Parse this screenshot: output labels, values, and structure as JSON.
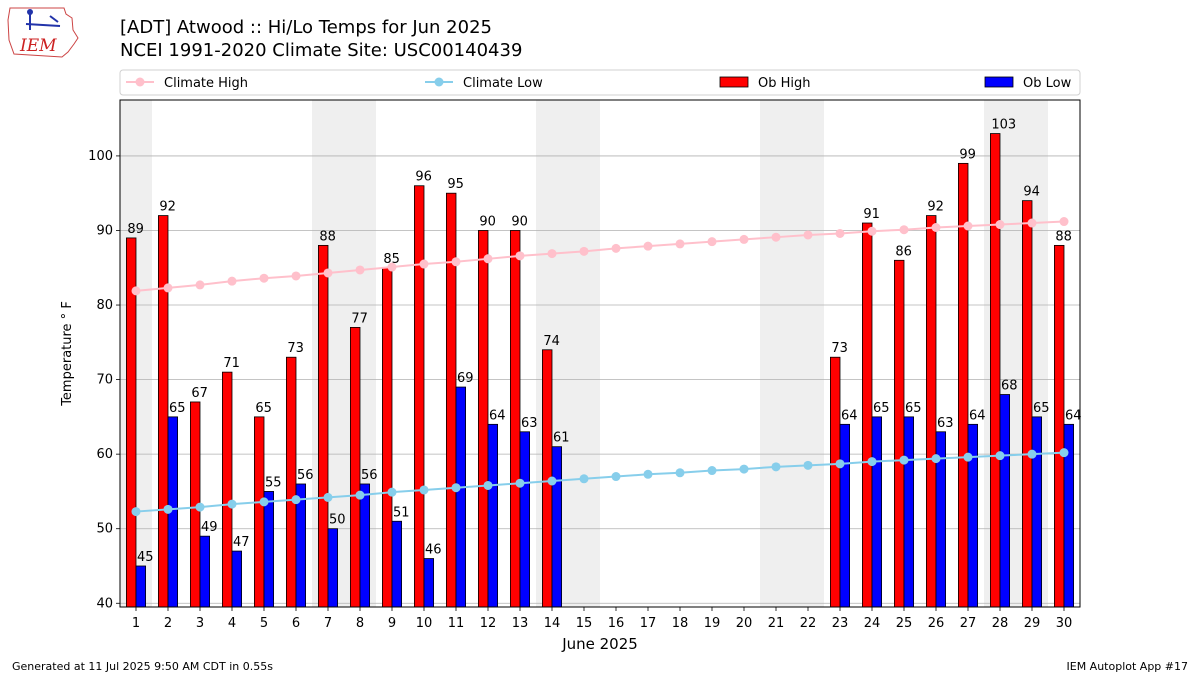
{
  "header": {
    "title": "[ADT] Atwood :: Hi/Lo Temps for Jun 2025",
    "subtitle": "NCEI 1991-2020 Climate Site: USC00140439"
  },
  "logo": {
    "text": "IEM"
  },
  "footer": {
    "left": "Generated at 11 Jul 2025 9:50 AM CDT in 0.55s",
    "right": "IEM Autoplot App #17"
  },
  "chart_data": {
    "type": "bar",
    "xlabel": "June 2025",
    "ylabel": "Temperature ° F",
    "xlim": [
      0.5,
      30.5
    ],
    "ylim": [
      39.5,
      107.5
    ],
    "yticks": [
      40,
      50,
      60,
      70,
      80,
      90,
      100
    ],
    "categories": [
      "1",
      "2",
      "3",
      "4",
      "5",
      "6",
      "7",
      "8",
      "9",
      "10",
      "11",
      "12",
      "13",
      "14",
      "15",
      "16",
      "17",
      "18",
      "19",
      "20",
      "21",
      "22",
      "23",
      "24",
      "25",
      "26",
      "27",
      "28",
      "29",
      "30"
    ],
    "weekend_days": [
      1,
      7,
      8,
      14,
      15,
      21,
      22,
      28,
      29
    ],
    "grid": "horizontal",
    "legend_placement": "top",
    "series": [
      {
        "name": "Climate High",
        "kind": "line",
        "color": "#ffc0cb",
        "values": [
          81.9,
          82.3,
          82.7,
          83.2,
          83.6,
          83.9,
          84.3,
          84.7,
          85.1,
          85.5,
          85.8,
          86.2,
          86.6,
          86.9,
          87.2,
          87.6,
          87.9,
          88.2,
          88.5,
          88.8,
          89.1,
          89.4,
          89.6,
          89.9,
          90.1,
          90.4,
          90.6,
          90.8,
          91.0,
          91.2
        ]
      },
      {
        "name": "Climate Low",
        "kind": "line",
        "color": "#87ceeb",
        "values": [
          52.3,
          52.6,
          52.9,
          53.3,
          53.6,
          53.9,
          54.2,
          54.5,
          54.9,
          55.2,
          55.5,
          55.8,
          56.1,
          56.4,
          56.7,
          57.0,
          57.3,
          57.5,
          57.8,
          58.0,
          58.3,
          58.5,
          58.7,
          59.0,
          59.2,
          59.4,
          59.6,
          59.8,
          60.0,
          60.2
        ]
      },
      {
        "name": "Ob High",
        "kind": "bar",
        "color": "#ff0000",
        "values": [
          89,
          92,
          67,
          71,
          65,
          73,
          88,
          77,
          85,
          96,
          95,
          90,
          90,
          74,
          null,
          null,
          null,
          null,
          null,
          null,
          null,
          null,
          73,
          91,
          86,
          92,
          99,
          103,
          94,
          88
        ]
      },
      {
        "name": "Ob Low",
        "kind": "bar",
        "color": "#0000ff",
        "values": [
          45,
          65,
          49,
          47,
          55,
          56,
          50,
          56,
          51,
          46,
          69,
          64,
          63,
          61,
          null,
          null,
          null,
          null,
          null,
          null,
          null,
          null,
          64,
          65,
          65,
          63,
          64,
          68,
          65,
          64
        ]
      }
    ]
  }
}
